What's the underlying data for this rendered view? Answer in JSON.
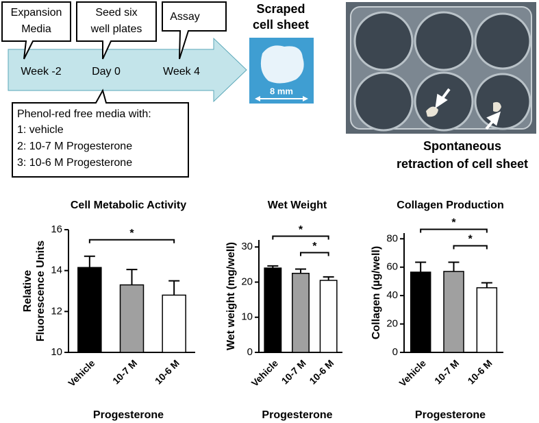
{
  "diagram": {
    "callouts": [
      [
        "Expansion",
        "Media"
      ],
      [
        "Seed six",
        "well plates"
      ],
      [
        "Assay"
      ]
    ],
    "timeline": [
      "Week -2",
      "Day 0",
      "Week 4"
    ],
    "media_box": [
      "Phenol-red free media with:",
      "1: vehicle",
      "2: 10-7 M Progesterone",
      "3: 10-6 M Progesterone"
    ],
    "photo1": {
      "caption": [
        "Scraped",
        "cell sheet"
      ],
      "scale": "8 mm"
    },
    "photo2": {
      "caption": [
        "Spontaneous",
        "retraction of cell sheet"
      ]
    }
  },
  "chart_data": [
    {
      "type": "bar",
      "title": "Cell Metabolic Activity",
      "ylabel": [
        "Relative",
        "Fluorescence Units"
      ],
      "xlabel": "Progesterone",
      "categories": [
        "Vehicle",
        "10-7 M",
        "10-6 M"
      ],
      "values": [
        14.15,
        13.3,
        12.8
      ],
      "errors": [
        0.55,
        0.75,
        0.7
      ],
      "colors": [
        "#000000",
        "#a0a0a0",
        "#ffffff"
      ],
      "ylim": [
        10,
        16
      ],
      "yticks": [
        10,
        12,
        14,
        16
      ],
      "significance": [
        {
          "label": "*",
          "between": [
            "Vehicle",
            "10-6 M"
          ]
        }
      ]
    },
    {
      "type": "bar",
      "title": "Wet Weight",
      "ylabel": [
        "Wet weight (mg/well)"
      ],
      "xlabel": "Progesterone",
      "categories": [
        "Vehicle",
        "10-7 M",
        "10-6 M"
      ],
      "values": [
        24,
        22.5,
        20.5
      ],
      "errors": [
        0.6,
        1.2,
        1
      ],
      "colors": [
        "#000000",
        "#a0a0a0",
        "#ffffff"
      ],
      "ylim": [
        0,
        32
      ],
      "yticks": [
        0,
        10,
        20,
        30
      ],
      "significance": [
        {
          "label": "*",
          "between": [
            "Vehicle",
            "10-6 M"
          ]
        },
        {
          "label": "*",
          "between": [
            "10-7 M",
            "10-6 M"
          ]
        }
      ]
    },
    {
      "type": "bar",
      "title": "Collagen Production",
      "ylabel": [
        "Collagen (µg/well)"
      ],
      "xlabel": "Progesterone",
      "categories": [
        "Vehicle",
        "10-7 M",
        "10-6 M"
      ],
      "values": [
        56.5,
        57,
        45.5
      ],
      "errors": [
        7,
        6.5,
        3.5
      ],
      "colors": [
        "#000000",
        "#a0a0a0",
        "#ffffff"
      ],
      "ylim": [
        0,
        84
      ],
      "yticks": [
        0,
        20,
        40,
        60,
        80
      ],
      "significance": [
        {
          "label": "*",
          "between": [
            "Vehicle",
            "10-6 M"
          ]
        },
        {
          "label": "*",
          "between": [
            "10-7 M",
            "10-6 M"
          ]
        }
      ]
    }
  ]
}
